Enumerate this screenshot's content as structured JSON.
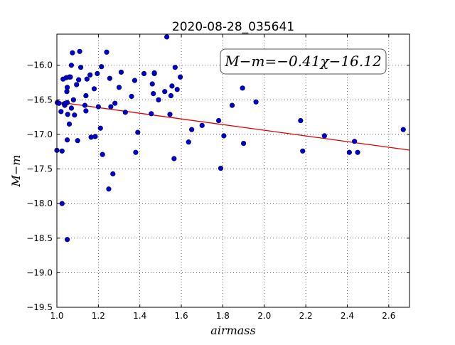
{
  "chart_data": {
    "type": "scatter",
    "title": "2020-08-28_035641",
    "xlabel": "airmass",
    "ylabel": "M−m",
    "xlim": [
      1.0,
      2.7
    ],
    "ylim": [
      -19.5,
      -15.55
    ],
    "y_inverted": true,
    "grid": true,
    "grid_style": "dotted",
    "x_ticks": [
      1.0,
      1.2,
      1.4,
      1.6,
      1.8,
      2.0,
      2.2,
      2.4,
      2.6
    ],
    "x_tick_labels": [
      "1.0",
      "1.2",
      "1.4",
      "1.6",
      "1.8",
      "2.0",
      "2.2",
      "2.4",
      "2.6"
    ],
    "y_ticks": [
      -16.0,
      -16.5,
      -17.0,
      -17.5,
      -18.0,
      -18.5,
      -19.0,
      -19.5
    ],
    "y_tick_labels": [
      "−16.0",
      "−16.5",
      "−17.0",
      "−17.5",
      "−18.0",
      "−18.5",
      "−19.0",
      "−19.5"
    ],
    "annotation": "M−m=−0.41χ−16.12",
    "annotation_placement": "top-right",
    "fit_line": {
      "slope": -0.41,
      "intercept": -16.12,
      "color": "#dd0000"
    },
    "point_color": "#0000cc",
    "points": [
      [
        1.002,
        -16.54
      ],
      [
        1.01,
        -16.55
      ],
      [
        1.0,
        -17.23
      ],
      [
        1.02,
        -16.67
      ],
      [
        1.025,
        -17.24
      ],
      [
        1.025,
        -18.0
      ],
      [
        1.03,
        -16.2
      ],
      [
        1.035,
        -16.56
      ],
      [
        1.038,
        -16.58
      ],
      [
        1.04,
        -16.55
      ],
      [
        1.045,
        -16.18
      ],
      [
        1.048,
        -16.38
      ],
      [
        1.05,
        -16.32
      ],
      [
        1.05,
        -16.54
      ],
      [
        1.05,
        -17.08
      ],
      [
        1.052,
        -16.71
      ],
      [
        1.05,
        -18.52
      ],
      [
        1.06,
        -16.17
      ],
      [
        1.06,
        -16.85
      ],
      [
        1.065,
        -16.17
      ],
      [
        1.07,
        -16.0
      ],
      [
        1.07,
        -16.62
      ],
      [
        1.075,
        -15.82
      ],
      [
        1.08,
        -16.5
      ],
      [
        1.085,
        -16.72
      ],
      [
        1.095,
        -16.28
      ],
      [
        1.1,
        -17.09
      ],
      [
        1.105,
        -16.21
      ],
      [
        1.11,
        -15.8
      ],
      [
        1.115,
        -16.03
      ],
      [
        1.135,
        -16.58
      ],
      [
        1.14,
        -16.44
      ],
      [
        1.14,
        -16.66
      ],
      [
        1.145,
        -16.2
      ],
      [
        1.16,
        -16.14
      ],
      [
        1.165,
        -17.04
      ],
      [
        1.18,
        -16.34
      ],
      [
        1.185,
        -17.03
      ],
      [
        1.195,
        -16.12
      ],
      [
        1.2,
        -16.6
      ],
      [
        1.21,
        -16.91
      ],
      [
        1.215,
        -16.02
      ],
      [
        1.22,
        -17.29
      ],
      [
        1.24,
        -15.81
      ],
      [
        1.25,
        -17.79
      ],
      [
        1.255,
        -16.19
      ],
      [
        1.26,
        -16.6
      ],
      [
        1.27,
        -17.57
      ],
      [
        1.28,
        -16.55
      ],
      [
        1.3,
        -16.32
      ],
      [
        1.31,
        -16.1
      ],
      [
        1.33,
        -16.68
      ],
      [
        1.36,
        -16.45
      ],
      [
        1.375,
        -16.22
      ],
      [
        1.38,
        -17.26
      ],
      [
        1.39,
        -16.97
      ],
      [
        1.42,
        -16.12
      ],
      [
        1.455,
        -16.7
      ],
      [
        1.46,
        -16.27
      ],
      [
        1.465,
        -16.41
      ],
      [
        1.47,
        -16.12
      ],
      [
        1.47,
        -16.11
      ],
      [
        1.49,
        -16.5
      ],
      [
        1.52,
        -16.38
      ],
      [
        1.53,
        -15.59
      ],
      [
        1.545,
        -16.71
      ],
      [
        1.55,
        -16.44
      ],
      [
        1.555,
        -16.3
      ],
      [
        1.565,
        -17.35
      ],
      [
        1.57,
        -16.03
      ],
      [
        1.58,
        -16.35
      ],
      [
        1.595,
        -16.17
      ],
      [
        1.635,
        -17.11
      ],
      [
        1.65,
        -16.93
      ],
      [
        1.7,
        -16.87
      ],
      [
        1.78,
        -16.8
      ],
      [
        1.79,
        -17.49
      ],
      [
        1.805,
        -17.02
      ],
      [
        1.845,
        -16.58
      ],
      [
        1.895,
        -16.33
      ],
      [
        1.9,
        -17.13
      ],
      [
        1.96,
        -16.53
      ],
      [
        2.175,
        -16.8
      ],
      [
        2.185,
        -17.24
      ],
      [
        2.29,
        -17.02
      ],
      [
        2.41,
        -17.26
      ],
      [
        2.435,
        -17.1
      ],
      [
        2.45,
        -17.26
      ],
      [
        2.67,
        -16.93
      ]
    ]
  }
}
